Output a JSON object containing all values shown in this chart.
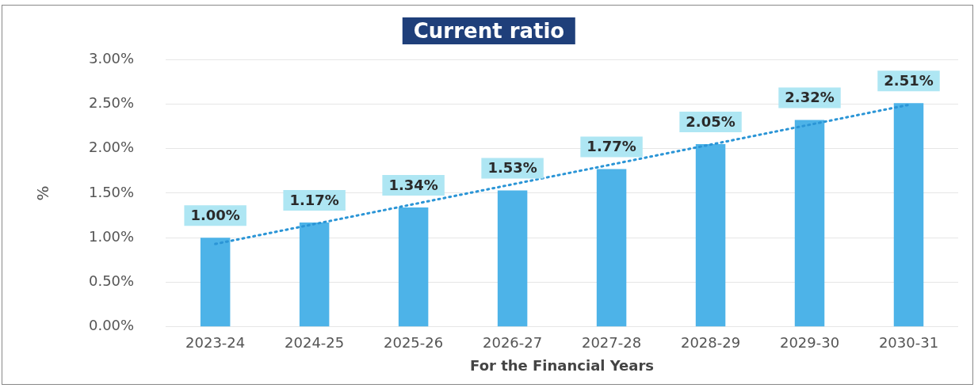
{
  "chart_data": {
    "type": "bar",
    "title": "Current ratio",
    "xlabel": "For the Financial Years",
    "ylabel": "%",
    "categories": [
      "2023-24",
      "2024-25",
      "2025-26",
      "2026-27",
      "2027-28",
      "2028-29",
      "2029-30",
      "2030-31"
    ],
    "series": [
      {
        "color": "#4db3e8",
        "values": [
          1.0,
          1.17,
          1.34,
          1.53,
          1.77,
          2.05,
          2.32,
          2.51
        ],
        "value_labels": [
          "1.00%",
          "1.17%",
          "1.34%",
          "1.53%",
          "1.77%",
          "2.05%",
          "2.32%",
          "2.51%"
        ]
      },
      {
        "type": "line",
        "color": "#2b95d6",
        "line_style": "dotted",
        "marker": "none",
        "x": [
          "2023-24",
          "2030-31"
        ],
        "values": [
          0.93,
          2.49
        ]
      }
    ],
    "ylim": [
      0,
      3
    ],
    "yticks": [
      {
        "value": 0,
        "label": "0.00%"
      },
      {
        "value": 0.5,
        "label": "0.50%"
      },
      {
        "value": 1,
        "label": "1.00%"
      },
      {
        "value": 1.5,
        "label": "1.50%"
      },
      {
        "value": 2,
        "label": "2.00%"
      },
      {
        "value": 2.5,
        "label": "2.50%"
      },
      {
        "value": 3,
        "label": "3.00%"
      }
    ],
    "grid": "y",
    "legend": false
  }
}
